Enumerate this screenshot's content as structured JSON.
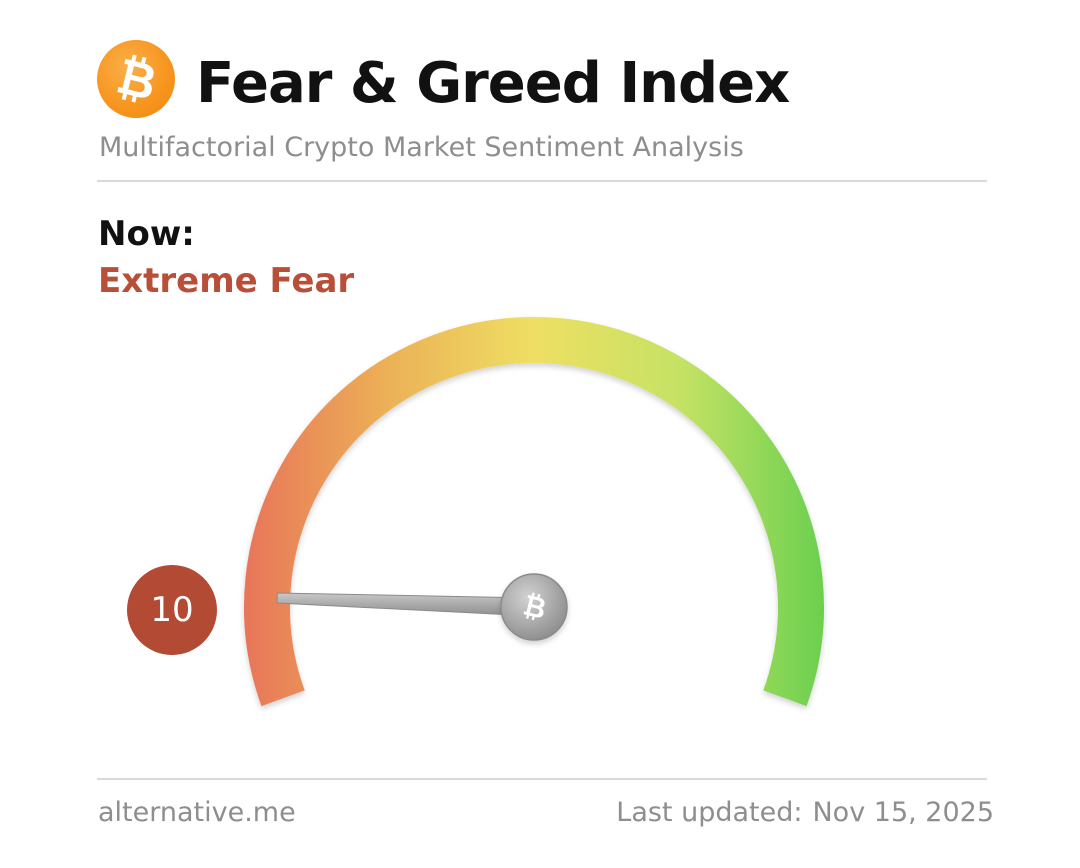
{
  "header": {
    "logo_icon": "bitcoin-icon",
    "title": "Fear & Greed Index",
    "subtitle": "Multifactorial Crypto Market Sentiment Analysis"
  },
  "current": {
    "label": "Now:",
    "status": "Extreme Fear",
    "status_color": "#b85039",
    "value": "10",
    "value_number": 10,
    "scale_min": 0,
    "scale_max": 100,
    "badge_color": "#b34a34"
  },
  "gauge": {
    "gradient_colors": [
      "#e8755a",
      "#ecb157",
      "#eedf63",
      "#c6e265",
      "#6bd04f"
    ],
    "needle_icon": "bitcoin-icon"
  },
  "footer": {
    "source": "alternative.me",
    "updated_label": "Last updated:",
    "updated_date": "Nov 15, 2025"
  }
}
